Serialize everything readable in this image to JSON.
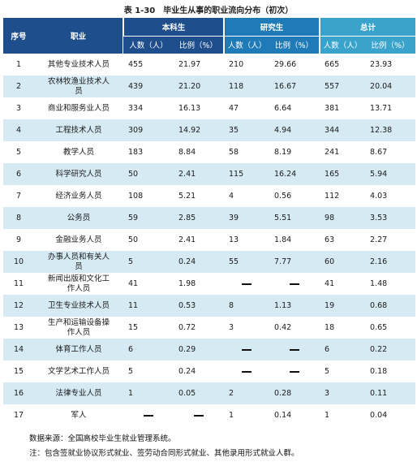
{
  "title": "表 1-30　毕业生从事的职业流向分布（初次）",
  "header": {
    "seq": "序号",
    "occupation": "职业",
    "groups": [
      "本科生",
      "研究生",
      "总计"
    ],
    "count": "人数（人）",
    "ratio": "比例（%）"
  },
  "rows": [
    {
      "seq": "1",
      "occupation": "其他专业技术人员",
      "ug_n": "455",
      "ug_p": "21.97",
      "g_n": "210",
      "g_p": "29.66",
      "t_n": "665",
      "t_p": "23.93"
    },
    {
      "seq": "2",
      "occupation": "农林牧渔业技术人员",
      "ug_n": "439",
      "ug_p": "21.20",
      "g_n": "118",
      "g_p": "16.67",
      "t_n": "557",
      "t_p": "20.04"
    },
    {
      "seq": "3",
      "occupation": "商业和服务业人员",
      "ug_n": "334",
      "ug_p": "16.13",
      "g_n": "47",
      "g_p": "6.64",
      "t_n": "381",
      "t_p": "13.71"
    },
    {
      "seq": "4",
      "occupation": "工程技术人员",
      "ug_n": "309",
      "ug_p": "14.92",
      "g_n": "35",
      "g_p": "4.94",
      "t_n": "344",
      "t_p": "12.38"
    },
    {
      "seq": "5",
      "occupation": "教学人员",
      "ug_n": "183",
      "ug_p": "8.84",
      "g_n": "58",
      "g_p": "8.19",
      "t_n": "241",
      "t_p": "8.67"
    },
    {
      "seq": "6",
      "occupation": "科学研究人员",
      "ug_n": "50",
      "ug_p": "2.41",
      "g_n": "115",
      "g_p": "16.24",
      "t_n": "165",
      "t_p": "5.94"
    },
    {
      "seq": "7",
      "occupation": "经济业务人员",
      "ug_n": "108",
      "ug_p": "5.21",
      "g_n": "4",
      "g_p": "0.56",
      "t_n": "112",
      "t_p": "4.03"
    },
    {
      "seq": "8",
      "occupation": "公务员",
      "ug_n": "59",
      "ug_p": "2.85",
      "g_n": "39",
      "g_p": "5.51",
      "t_n": "98",
      "t_p": "3.53"
    },
    {
      "seq": "9",
      "occupation": "金融业务人员",
      "ug_n": "50",
      "ug_p": "2.41",
      "g_n": "13",
      "g_p": "1.84",
      "t_n": "63",
      "t_p": "2.27"
    },
    {
      "seq": "10",
      "occupation": "办事人员和有关人员",
      "ug_n": "5",
      "ug_p": "0.24",
      "g_n": "55",
      "g_p": "7.77",
      "t_n": "60",
      "t_p": "2.16"
    },
    {
      "seq": "11",
      "occupation": "新闻出版和文化工作人员",
      "ug_n": "41",
      "ug_p": "1.98",
      "g_n": "—",
      "g_p": "—",
      "t_n": "41",
      "t_p": "1.48"
    },
    {
      "seq": "12",
      "occupation": "卫生专业技术人员",
      "ug_n": "11",
      "ug_p": "0.53",
      "g_n": "8",
      "g_p": "1.13",
      "t_n": "19",
      "t_p": "0.68"
    },
    {
      "seq": "13",
      "occupation": "生产和运输设备操作人员",
      "ug_n": "15",
      "ug_p": "0.72",
      "g_n": "3",
      "g_p": "0.42",
      "t_n": "18",
      "t_p": "0.65"
    },
    {
      "seq": "14",
      "occupation": "体育工作人员",
      "ug_n": "6",
      "ug_p": "0.29",
      "g_n": "—",
      "g_p": "—",
      "t_n": "6",
      "t_p": "0.22"
    },
    {
      "seq": "15",
      "occupation": "文学艺术工作人员",
      "ug_n": "5",
      "ug_p": "0.24",
      "g_n": "—",
      "g_p": "—",
      "t_n": "5",
      "t_p": "0.18"
    },
    {
      "seq": "16",
      "occupation": "法律专业人员",
      "ug_n": "1",
      "ug_p": "0.05",
      "g_n": "2",
      "g_p": "0.28",
      "t_n": "3",
      "t_p": "0.11"
    },
    {
      "seq": "17",
      "occupation": "军人",
      "ug_n": "—",
      "ug_p": "—",
      "g_n": "1",
      "g_p": "0.14",
      "t_n": "1",
      "t_p": "0.04"
    }
  ],
  "footer": {
    "source": "数据来源：全国高校毕业生就业管理系统。",
    "note": "注：包含签就业协议形式就业、签劳动合同形式就业、其他录用形式就业人群。"
  }
}
